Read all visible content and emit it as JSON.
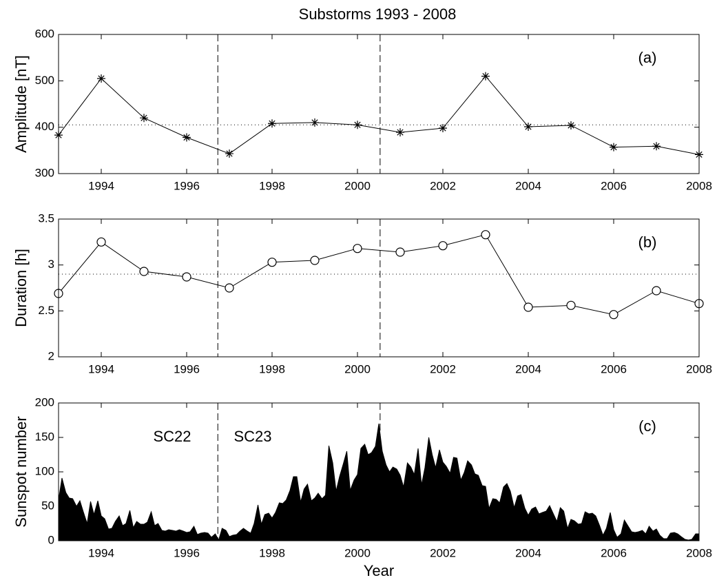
{
  "chart_data": [
    {
      "type": "line",
      "title": "Substorms 1993 - 2008",
      "ylabel": "Amplitude  [nT]",
      "label": "(a)",
      "x": [
        1993,
        1994,
        1995,
        1996,
        1997,
        1998,
        1999,
        2000,
        2001,
        2002,
        2003,
        2004,
        2005,
        2006,
        2007,
        2008
      ],
      "series": [
        {
          "color": "#000000",
          "marker": "star",
          "values": [
            383,
            505,
            420,
            378,
            343,
            408,
            410,
            405,
            389,
            398,
            510,
            401,
            404,
            357,
            359,
            341
          ]
        }
      ],
      "hline": 405,
      "vlines": [
        1996.73,
        2000.53
      ],
      "xlim": [
        1993,
        2008
      ],
      "xticks": [
        1994,
        1996,
        1998,
        2000,
        2002,
        2004,
        2006,
        2008
      ],
      "ylim": [
        300,
        600
      ],
      "yticks": [
        300,
        400,
        500,
        600
      ]
    },
    {
      "type": "line",
      "ylabel": "Duration  [h]",
      "label": "(b)",
      "x": [
        1993,
        1994,
        1995,
        1996,
        1997,
        1998,
        1999,
        2000,
        2001,
        2002,
        2003,
        2004,
        2005,
        2006,
        2007,
        2008
      ],
      "series": [
        {
          "color": "#000000",
          "marker": "circle",
          "values": [
            2.69,
            3.25,
            2.93,
            2.87,
            2.75,
            3.03,
            3.05,
            3.18,
            3.14,
            3.21,
            3.33,
            2.54,
            2.56,
            2.46,
            2.72,
            2.58
          ]
        }
      ],
      "hline": 2.9,
      "vlines": [
        1996.73,
        2000.53
      ],
      "xlim": [
        1993,
        2008
      ],
      "xticks": [
        1994,
        1996,
        1998,
        2000,
        2002,
        2004,
        2006,
        2008
      ],
      "ylim": [
        2,
        3.5
      ],
      "yticks": [
        2,
        2.5,
        3,
        3.5
      ]
    },
    {
      "type": "area",
      "ylabel": "Sunspot number",
      "xlabel": "Year",
      "label": "(c)",
      "annotations": [
        "SC22",
        "SC23"
      ],
      "x": [
        1993.0,
        1993.08,
        1993.17,
        1993.25,
        1993.33,
        1993.42,
        1993.5,
        1993.58,
        1993.67,
        1993.75,
        1993.83,
        1993.92,
        1994.0,
        1994.08,
        1994.17,
        1994.25,
        1994.33,
        1994.42,
        1994.5,
        1994.58,
        1994.67,
        1994.75,
        1994.83,
        1994.92,
        1995.0,
        1995.08,
        1995.17,
        1995.25,
        1995.33,
        1995.42,
        1995.5,
        1995.58,
        1995.67,
        1995.75,
        1995.83,
        1995.92,
        1996.0,
        1996.08,
        1996.17,
        1996.25,
        1996.33,
        1996.42,
        1996.5,
        1996.58,
        1996.67,
        1996.75,
        1996.83,
        1996.92,
        1997.0,
        1997.08,
        1997.17,
        1997.25,
        1997.33,
        1997.42,
        1997.5,
        1997.58,
        1997.67,
        1997.75,
        1997.83,
        1997.92,
        1998.0,
        1998.08,
        1998.17,
        1998.25,
        1998.33,
        1998.42,
        1998.5,
        1998.58,
        1998.67,
        1998.75,
        1998.83,
        1998.92,
        1999.0,
        1999.08,
        1999.17,
        1999.25,
        1999.33,
        1999.42,
        1999.5,
        1999.58,
        1999.67,
        1999.75,
        1999.83,
        1999.92,
        2000.0,
        2000.08,
        2000.17,
        2000.25,
        2000.33,
        2000.42,
        2000.5,
        2000.58,
        2000.67,
        2000.75,
        2000.83,
        2000.92,
        2001.0,
        2001.08,
        2001.17,
        2001.25,
        2001.33,
        2001.42,
        2001.5,
        2001.58,
        2001.67,
        2001.75,
        2001.83,
        2001.92,
        2002.0,
        2002.08,
        2002.17,
        2002.25,
        2002.33,
        2002.42,
        2002.5,
        2002.58,
        2002.67,
        2002.75,
        2002.83,
        2002.92,
        2003.0,
        2003.08,
        2003.17,
        2003.25,
        2003.33,
        2003.42,
        2003.5,
        2003.58,
        2003.67,
        2003.75,
        2003.83,
        2003.92,
        2004.0,
        2004.08,
        2004.17,
        2004.25,
        2004.33,
        2004.42,
        2004.5,
        2004.58,
        2004.67,
        2004.75,
        2004.83,
        2004.92,
        2005.0,
        2005.08,
        2005.17,
        2005.25,
        2005.33,
        2005.42,
        2005.5,
        2005.58,
        2005.67,
        2005.75,
        2005.83,
        2005.92,
        2006.0,
        2006.08,
        2006.17,
        2006.25,
        2006.33,
        2006.42,
        2006.5,
        2006.58,
        2006.67,
        2006.75,
        2006.83,
        2006.92,
        2007.0,
        2007.08,
        2007.17,
        2007.25,
        2007.33,
        2007.42,
        2007.5,
        2007.58,
        2007.67,
        2007.75,
        2007.83,
        2007.92,
        2008.0
      ],
      "series": [
        {
          "color": "#000000",
          "values": [
            59,
            91,
            70,
            62,
            61,
            50,
            58,
            42,
            25,
            57,
            38,
            58,
            36,
            32,
            17,
            18,
            28,
            36,
            22,
            25,
            44,
            19,
            28,
            24,
            24,
            27,
            42,
            22,
            25,
            15,
            14,
            16,
            15,
            14,
            16,
            14,
            12,
            13,
            21,
            9,
            11,
            12,
            11,
            5,
            10,
            1,
            18,
            15,
            6,
            8,
            9,
            14,
            18,
            14,
            11,
            25,
            52,
            24,
            38,
            40,
            33,
            41,
            55,
            54,
            59,
            73,
            93,
            93,
            56,
            75,
            82,
            58,
            62,
            69,
            61,
            66,
            138,
            113,
            72,
            93,
            112,
            130,
            73,
            88,
            96,
            134,
            140,
            125,
            128,
            137,
            170,
            130,
            110,
            100,
            107,
            104,
            95,
            78,
            113,
            107,
            96,
            134,
            81,
            106,
            150,
            125,
            106,
            132,
            114,
            108,
            98,
            121,
            120,
            88,
            99,
            116,
            110,
            97,
            95,
            80,
            79,
            47,
            61,
            60,
            55,
            78,
            83,
            72,
            48,
            65,
            67,
            47,
            37,
            46,
            49,
            39,
            41,
            43,
            51,
            40,
            28,
            48,
            43,
            18,
            31,
            29,
            24,
            25,
            42,
            39,
            40,
            36,
            22,
            8,
            18,
            41,
            16,
            5,
            10,
            30,
            22,
            13,
            12,
            13,
            15,
            10,
            21,
            14,
            17,
            8,
            3,
            3,
            11,
            12,
            10,
            6,
            2,
            1,
            2,
            10,
            10
          ]
        }
      ],
      "vlines": [
        1996.73,
        2000.53
      ],
      "xlim": [
        1993,
        2008
      ],
      "xticks": [
        1994,
        1996,
        1998,
        2000,
        2002,
        2004,
        2006,
        2008
      ],
      "ylim": [
        0,
        200
      ],
      "yticks": [
        0,
        50,
        100,
        150,
        200
      ]
    }
  ]
}
